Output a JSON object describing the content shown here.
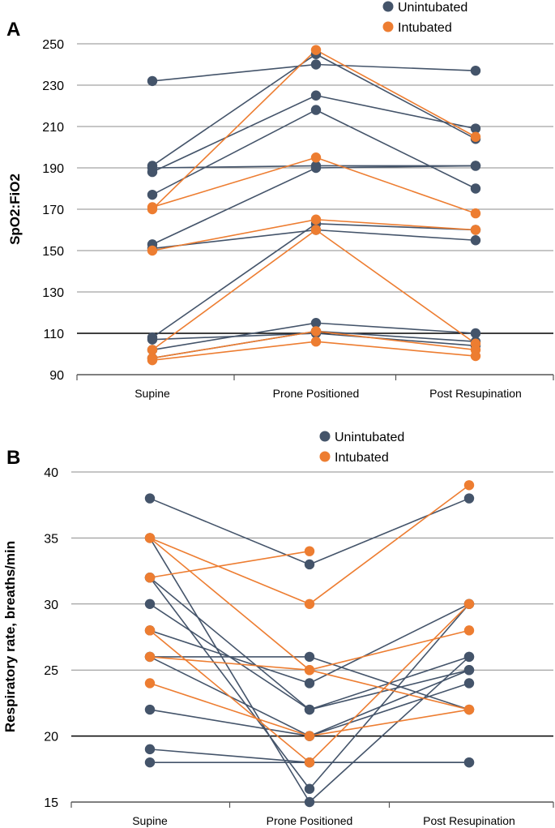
{
  "colors": {
    "unintubated": "#44546a",
    "intubated": "#ed7d31",
    "grid": "#8c8c8c",
    "axis": "#555555"
  },
  "chart_data": [
    {
      "panel": "A",
      "type": "line",
      "ylabel": "SpO2:FiO2",
      "categories": [
        "Supine",
        "Prone Positioned",
        "Post Resupination"
      ],
      "ylim": [
        90,
        250
      ],
      "yticks": [
        90,
        110,
        130,
        150,
        170,
        190,
        210,
        230,
        250
      ],
      "dark_gridline": 110,
      "legend": {
        "placement": "top-right",
        "entries": [
          {
            "label": "Unintubated",
            "group": "unintubated"
          },
          {
            "label": "Intubated",
            "group": "intubated"
          }
        ]
      },
      "series": [
        {
          "group": "unintubated",
          "values": [
            232,
            240,
            237
          ]
        },
        {
          "group": "unintubated",
          "values": [
            191,
            245,
            204
          ]
        },
        {
          "group": "unintubated",
          "values": [
            188,
            225,
            209
          ]
        },
        {
          "group": "unintubated",
          "values": [
            177,
            218,
            180
          ]
        },
        {
          "group": "unintubated",
          "values": [
            190,
            191,
            191
          ]
        },
        {
          "group": "unintubated",
          "values": [
            153,
            190,
            191
          ]
        },
        {
          "group": "unintubated",
          "values": [
            151,
            160,
            155
          ]
        },
        {
          "group": "unintubated",
          "values": [
            108,
            163,
            160
          ]
        },
        {
          "group": "unintubated",
          "values": [
            102,
            115,
            110
          ]
        },
        {
          "group": "unintubated",
          "values": [
            107,
            110,
            104
          ]
        },
        {
          "group": "unintubated",
          "values": [
            98,
            111,
            106
          ]
        },
        {
          "group": "intubated",
          "values": [
            170,
            247,
            205
          ]
        },
        {
          "group": "intubated",
          "values": [
            171,
            195,
            168
          ]
        },
        {
          "group": "intubated",
          "values": [
            150,
            165,
            160
          ]
        },
        {
          "group": "intubated",
          "values": [
            102,
            160,
            105
          ]
        },
        {
          "group": "intubated",
          "values": [
            98,
            111,
            102
          ]
        },
        {
          "group": "intubated",
          "values": [
            97,
            106,
            99
          ]
        }
      ]
    },
    {
      "panel": "B",
      "type": "line",
      "ylabel": "Respiratory rate, breaths/min",
      "categories": [
        "Supine",
        "Prone Positioned",
        "Post Resupination"
      ],
      "ylim": [
        15,
        40
      ],
      "yticks": [
        15,
        20,
        25,
        30,
        35,
        40
      ],
      "dark_gridline": 20,
      "legend": {
        "placement": "top-center",
        "entries": [
          {
            "label": "Unintubated",
            "group": "unintubated"
          },
          {
            "label": "Intubated",
            "group": "intubated"
          }
        ]
      },
      "series": [
        {
          "group": "unintubated",
          "values": [
            38,
            33,
            38
          ]
        },
        {
          "group": "unintubated",
          "values": [
            35,
            15,
            26
          ]
        },
        {
          "group": "unintubated",
          "values": [
            32,
            16,
            30
          ]
        },
        {
          "group": "unintubated",
          "values": [
            30,
            22,
            25
          ]
        },
        {
          "group": "unintubated",
          "values": [
            28,
            24,
            30
          ]
        },
        {
          "group": "unintubated",
          "values": [
            26,
            26,
            22
          ]
        },
        {
          "group": "unintubated",
          "values": [
            26,
            20,
            24
          ]
        },
        {
          "group": "unintubated",
          "values": [
            22,
            20,
            25
          ]
        },
        {
          "group": "unintubated",
          "values": [
            19,
            18,
            18
          ]
        },
        {
          "group": "unintubated",
          "values": [
            18,
            18,
            18
          ]
        },
        {
          "group": "unintubated",
          "values": [
            32,
            22,
            26
          ]
        },
        {
          "group": "intubated",
          "values": [
            35,
            30,
            39
          ]
        },
        {
          "group": "intubated",
          "values": [
            32,
            34,
            null
          ]
        },
        {
          "group": "intubated",
          "values": [
            28,
            18,
            30
          ]
        },
        {
          "group": "intubated",
          "values": [
            26,
            25,
            28
          ]
        },
        {
          "group": "intubated",
          "values": [
            24,
            20,
            22
          ]
        },
        {
          "group": "intubated",
          "values": [
            35,
            25,
            22
          ]
        }
      ]
    }
  ]
}
